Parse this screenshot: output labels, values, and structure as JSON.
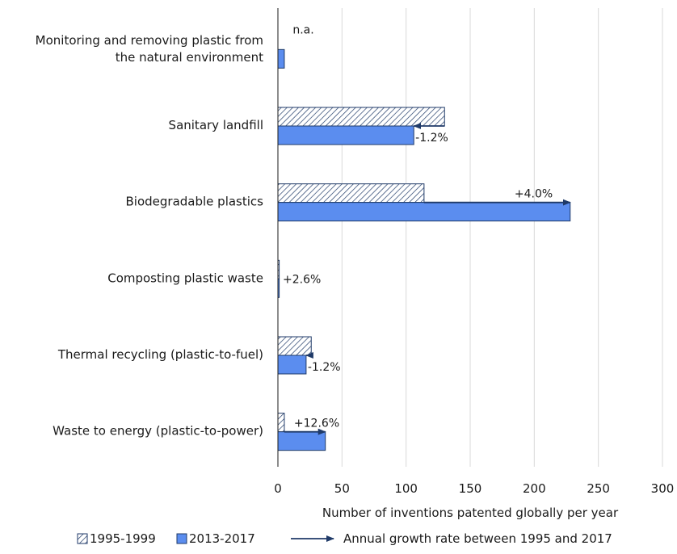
{
  "chart_data": {
    "type": "bar",
    "orientation": "horizontal",
    "categories": [
      [
        "Monitoring and removing plastic from",
        "the natural environment"
      ],
      [
        "Sanitary landfill"
      ],
      [
        "Biodegradable plastics"
      ],
      [
        "Composting plastic waste"
      ],
      [
        "Thermal recycling (plastic-to-fuel)"
      ],
      [
        "Waste to energy (plastic-to-power)"
      ]
    ],
    "series": [
      {
        "name": "1995-1999",
        "values": [
          0,
          130,
          114,
          1,
          26,
          5
        ],
        "pattern": "hatched",
        "color": "#1f3a68"
      },
      {
        "name": "2013-2017",
        "values": [
          5,
          106,
          228,
          1,
          22,
          37
        ],
        "pattern": "solid",
        "color": "#5b8def"
      }
    ],
    "annotations": [
      "n.a.",
      "-1.2%",
      "+4.0%",
      "+2.6%",
      "-1.2%",
      "+12.6%"
    ],
    "xlabel": "Number of inventions patented globally per year",
    "xlim": [
      0,
      300
    ],
    "xticks": [
      "0",
      "50",
      "100",
      "150",
      "200",
      "250",
      "300"
    ],
    "grid": "vertical",
    "legend": {
      "position": "bottom",
      "items": [
        "1995-1999",
        "2013-2017"
      ],
      "arrow_label": "Annual growth rate between 1995 and 2017"
    },
    "colors": {
      "arrow": "#1f3a68",
      "bar_edge": "#1f3a68",
      "grid": "#d9d9d9"
    }
  }
}
